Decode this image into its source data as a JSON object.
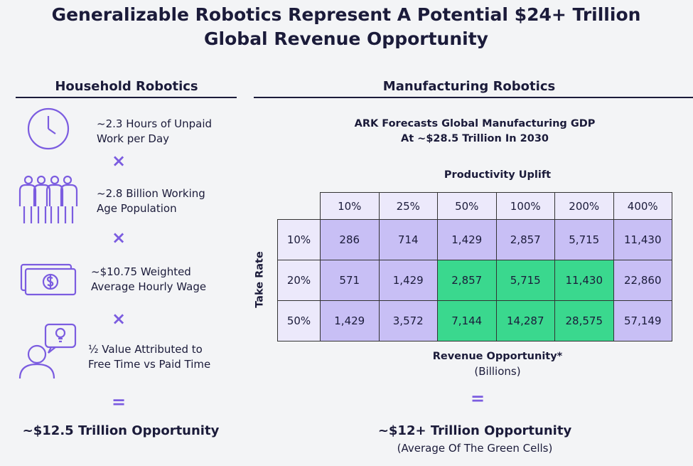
{
  "title": [
    "Generalizable Robotics Represent A Potential $24+ Trillion",
    "Global Revenue Opportunity"
  ],
  "household": {
    "heading": "Household Robotics",
    "items": [
      [
        "~2.3 Hours of Unpaid",
        "Work per Day"
      ],
      [
        "~2.8 Billion Working",
        "Age Population"
      ],
      [
        "~$10.75 Weighted",
        "Average Hourly Wage"
      ],
      [
        "½ Value Attributed to",
        "Free Time vs Paid Time"
      ]
    ],
    "operators": [
      "×",
      "×",
      "×",
      "="
    ],
    "result": "~$12.5 Trillion Opportunity"
  },
  "manufacturing": {
    "heading": "Manufacturing Robotics",
    "subtitle": [
      "ARK Forecasts Global Manufacturing GDP",
      "At ~$28.5 Trillion In 2030"
    ],
    "column_header": "Productivity Uplift",
    "row_header": "Take Rate",
    "columns": [
      "10%",
      "25%",
      "50%",
      "100%",
      "200%",
      "400%"
    ],
    "rows": [
      {
        "label": "10%",
        "cells": [
          "286",
          "714",
          "1,429",
          "2,857",
          "5,715",
          "11,430"
        ]
      },
      {
        "label": "20%",
        "cells": [
          "571",
          "1,429",
          "2,857",
          "5,715",
          "11,430",
          "22,860"
        ]
      },
      {
        "label": "50%",
        "cells": [
          "1,429",
          "3,572",
          "7,144",
          "14,287",
          "28,575",
          "57,149"
        ]
      }
    ],
    "caption": "Revenue Opportunity*",
    "caption_unit": "(Billions)",
    "operator": "=",
    "result": "~$12+ Trillion Opportunity",
    "result_note": "(Average Of The Green Cells)"
  }
}
